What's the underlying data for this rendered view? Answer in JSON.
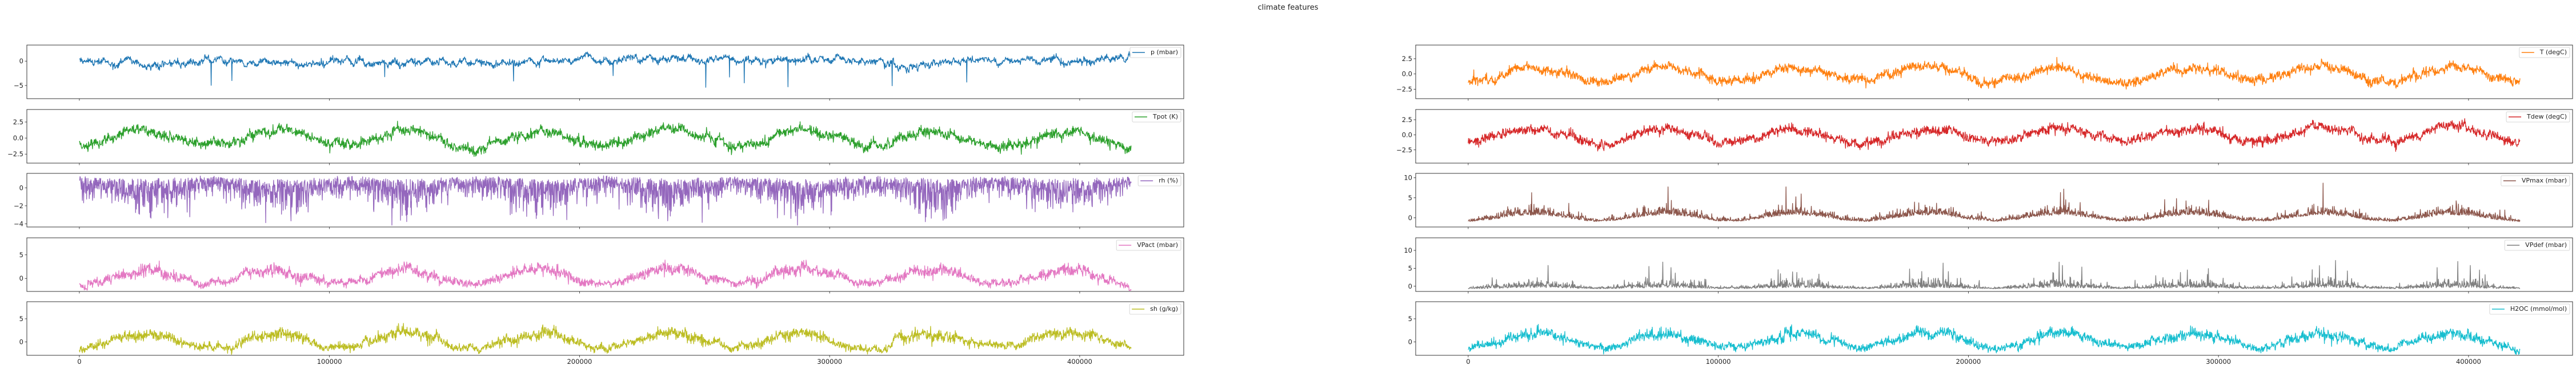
{
  "chart_data": {
    "type": "line",
    "title": "climate features",
    "xlabel": "",
    "xlim": [
      -21000,
      441600
    ],
    "x_ticks": [
      0,
      100000,
      200000,
      300000,
      400000
    ],
    "x_tick_labels": [
      "0",
      "100000",
      "200000",
      "300000",
      "400000"
    ],
    "n_samples": 420551,
    "grid": false,
    "legend_placement": "top-right",
    "seasonal_index_step": 10000,
    "seasonal_index": [
      -1.0,
      -0.37,
      0.73,
      0.9,
      -0.07,
      -0.95,
      -0.63,
      0.49,
      0.99,
      0.23,
      -0.82,
      -0.83,
      0.21,
      0.99,
      0.52,
      -0.61,
      -0.96,
      -0.1,
      0.89,
      0.75,
      -0.34,
      -1.0,
      -0.39,
      0.71,
      0.92,
      -0.04,
      -0.95,
      -0.65,
      0.47,
      0.99,
      0.26,
      -0.8,
      -0.85,
      0.18,
      0.98,
      0.54,
      -0.58,
      -0.97,
      -0.13,
      0.88,
      0.77,
      -0.31,
      -1.0
    ],
    "subplots": [
      {
        "column": "left",
        "label": "p (mbar)",
        "color": "#1f77b4",
        "ylim": [
          -7.7,
          3.3
        ],
        "yticks": [
          -5,
          0
        ],
        "ytick_labels": [
          "−5",
          "0"
        ],
        "mean": 0.0,
        "seasonal_amplitude": 0.0,
        "kind": "pressure"
      },
      {
        "column": "left",
        "label": "Tpot (K)",
        "color": "#2ca02c",
        "ylim": [
          -3.9,
          4.45
        ],
        "yticks": [
          -2.5,
          0,
          2.5
        ],
        "ytick_labels": [
          "−2.5",
          "0.0",
          "2.5"
        ],
        "mean": 0.0,
        "seasonal_amplitude": 1.3,
        "kind": "temp"
      },
      {
        "column": "left",
        "label": "rh (%)",
        "color": "#9467bd",
        "ylim": [
          -4.35,
          1.6
        ],
        "yticks": [
          -4,
          -2,
          0
        ],
        "ytick_labels": [
          "−4",
          "−2",
          "0"
        ],
        "mean": 0.3,
        "seasonal_amplitude": -0.5,
        "kind": "humidity"
      },
      {
        "column": "left",
        "label": "VPact (mbar)",
        "color": "#e377c2",
        "ylim": [
          -2.75,
          8.6
        ],
        "yticks": [
          0,
          5
        ],
        "ytick_labels": [
          "0",
          "5"
        ],
        "mean": 0.3,
        "seasonal_amplitude": 1.7,
        "kind": "vapour"
      },
      {
        "column": "left",
        "label": "sh (g/kg)",
        "color": "#bcbd22",
        "ylim": [
          -2.9,
          8.7
        ],
        "yticks": [
          0,
          5
        ],
        "ytick_labels": [
          "0",
          "5"
        ],
        "mean": 0.3,
        "seasonal_amplitude": 1.7,
        "kind": "vapour"
      },
      {
        "column": "right",
        "label": "T (degC)",
        "color": "#ff7f0e",
        "ylim": [
          -4.05,
          4.74
        ],
        "yticks": [
          -2.5,
          0,
          2.5
        ],
        "ytick_labels": [
          "−2.5",
          "0.0",
          "2.5"
        ],
        "mean": 0.0,
        "seasonal_amplitude": 1.3,
        "kind": "temp"
      },
      {
        "column": "right",
        "label": "Tdew (degC)",
        "color": "#d62728",
        "ylim": [
          -4.7,
          4.2
        ],
        "yticks": [
          -2.5,
          0,
          2.5
        ],
        "ytick_labels": [
          "−2.5",
          "0.0",
          "2.5"
        ],
        "mean": 0.0,
        "seasonal_amplitude": 1.2,
        "kind": "temp"
      },
      {
        "column": "right",
        "label": "VPmax (mbar)",
        "color": "#8c564b",
        "ylim": [
          -2.3,
          11.1
        ],
        "yticks": [
          0,
          5,
          10
        ],
        "ytick_labels": [
          "0",
          "5",
          "10"
        ],
        "mean": 0.1,
        "seasonal_amplitude": 1.1,
        "kind": "spiky"
      },
      {
        "column": "right",
        "label": "VPdef (mbar)",
        "color": "#7f7f7f",
        "ylim": [
          -1.45,
          13.5
        ],
        "yticks": [
          0,
          5,
          10
        ],
        "ytick_labels": [
          "0",
          "5",
          "10"
        ],
        "mean": -0.1,
        "seasonal_amplitude": 0.9,
        "kind": "deficit"
      },
      {
        "column": "right",
        "label": "H2OC (mmol/mol)",
        "color": "#17becf",
        "ylim": [
          -2.9,
          8.7
        ],
        "yticks": [
          0,
          5
        ],
        "ytick_labels": [
          "0",
          "5"
        ],
        "mean": 0.3,
        "seasonal_amplitude": 1.7,
        "kind": "vapour"
      }
    ]
  }
}
